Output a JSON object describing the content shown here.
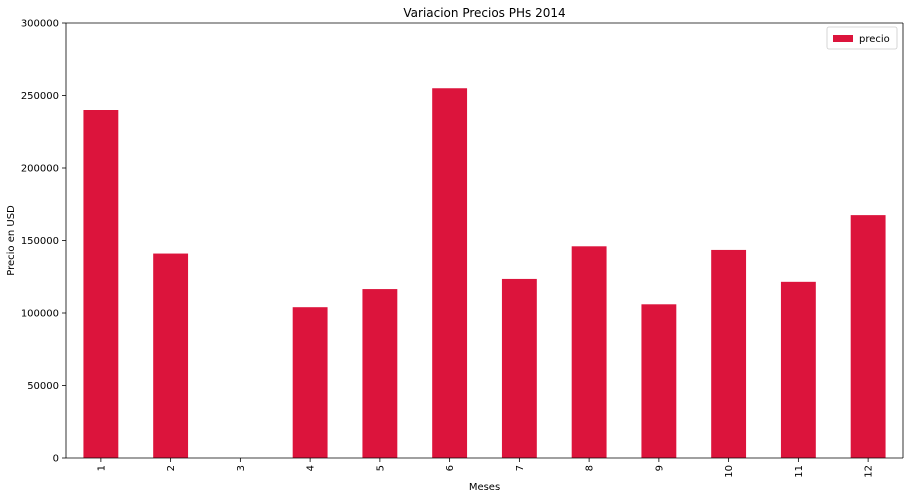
{
  "chart_data": {
    "type": "bar",
    "title": "Variacion Precios PHs 2014",
    "xlabel": "Meses",
    "ylabel": "Precio en USD",
    "categories": [
      "1",
      "2",
      "3",
      "4",
      "5",
      "6",
      "7",
      "8",
      "9",
      "10",
      "11",
      "12"
    ],
    "series": [
      {
        "name": "precio",
        "color": "#dc143c",
        "values": [
          240000,
          141000,
          0,
          104000,
          116500,
          255000,
          123500,
          146000,
          106000,
          143500,
          121500,
          167500
        ]
      }
    ],
    "ylim": [
      0,
      300000
    ],
    "yticks": [
      0,
      50000,
      100000,
      150000,
      200000,
      250000,
      300000
    ],
    "ytick_labels": [
      "0",
      "50000",
      "100000",
      "150000",
      "200000",
      "250000",
      "300000"
    ],
    "grid": false,
    "legend_position": "top-right"
  }
}
